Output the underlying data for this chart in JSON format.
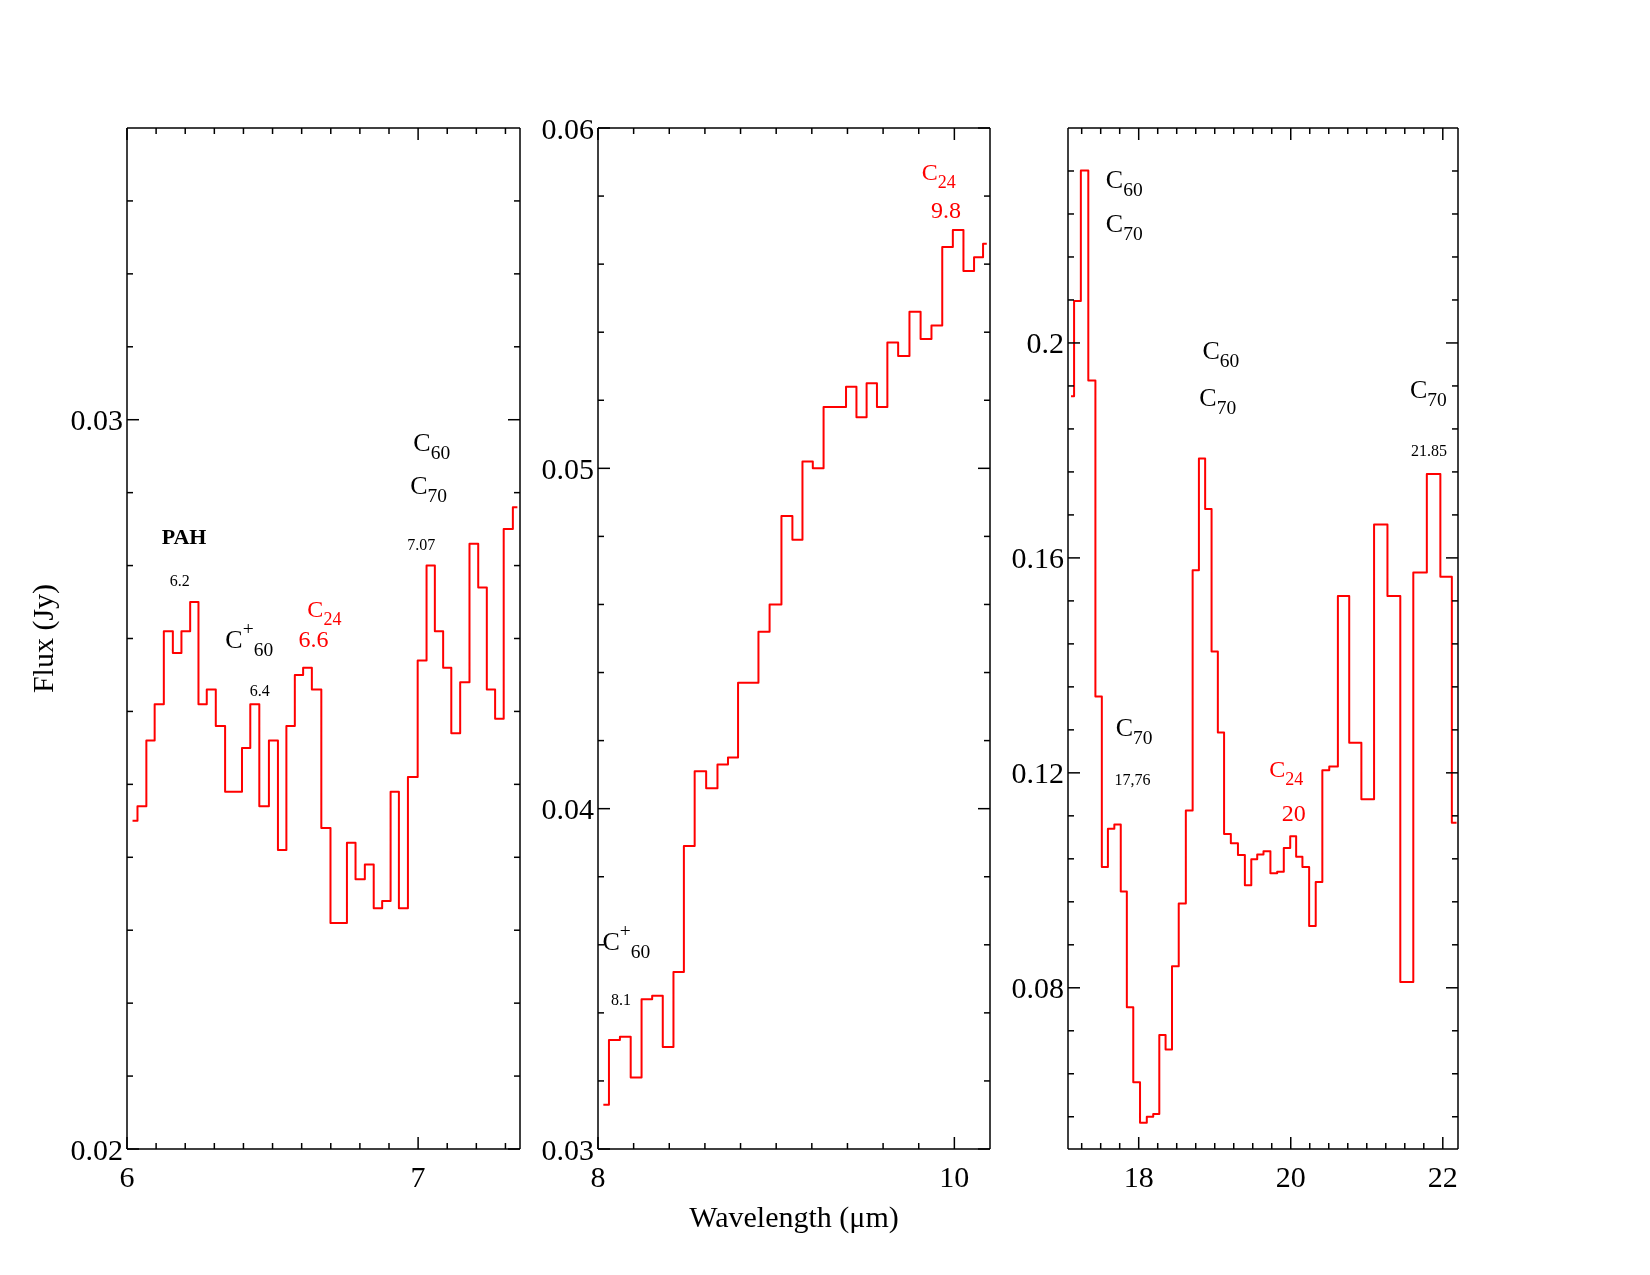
{
  "chart_data": [
    {
      "type": "step",
      "ylabel": "Flux (Jy)",
      "color": "#ff0000",
      "x": [
        6.019,
        6.053,
        6.08,
        6.11,
        6.143,
        6.172,
        6.202,
        6.232,
        6.259,
        6.289,
        6.321,
        6.353,
        6.381,
        6.409,
        6.438,
        6.471,
        6.504,
        6.533,
        6.562,
        6.591,
        6.619,
        6.651,
        6.684,
        6.714,
        6.742,
        6.769,
        6.801,
        6.833,
        6.862,
        6.891,
        6.92,
        6.948,
        6.982,
        7.015,
        7.043,
        7.072,
        7.1,
        7.128,
        7.161,
        7.192,
        7.221,
        7.251,
        7.278,
        7.31,
        7.341
      ],
      "values": [
        0.0245,
        0.0247,
        0.0256,
        0.0261,
        0.0271,
        0.0268,
        0.0271,
        0.0275,
        0.0261,
        0.0263,
        0.0258,
        0.0249,
        0.0249,
        0.0255,
        0.0261,
        0.0247,
        0.0256,
        0.0241,
        0.0258,
        0.0265,
        0.0266,
        0.0263,
        0.0244,
        0.0231,
        0.0231,
        0.0242,
        0.0237,
        0.0239,
        0.0233,
        0.0234,
        0.0249,
        0.0233,
        0.0251,
        0.0267,
        0.028,
        0.0271,
        0.0266,
        0.0257,
        0.0264,
        0.0283,
        0.0277,
        0.0263,
        0.0259,
        0.0285,
        0.0288
      ],
      "xlim": [
        6,
        7.35
      ],
      "ylim": [
        0.02,
        0.034
      ],
      "xticks": [
        6,
        {
          "value": 6.1,
          "label": null
        },
        {
          "value": 6.2,
          "label": null
        },
        {
          "value": 6.3,
          "label": null
        },
        {
          "value": 6.4,
          "label": null
        },
        {
          "value": 6.5,
          "label": null
        },
        {
          "value": 6.6,
          "label": null
        },
        {
          "value": 6.7,
          "label": null
        },
        {
          "value": 6.8,
          "label": null
        },
        {
          "value": 6.9,
          "label": null
        },
        7,
        {
          "value": 7.1,
          "label": null
        },
        {
          "value": 7.2,
          "label": null
        },
        {
          "value": 7.3,
          "label": null
        }
      ],
      "yticks": [
        0.02,
        {
          "value": 0.021,
          "label": null
        },
        {
          "value": 0.022,
          "label": null
        },
        {
          "value": 0.023,
          "label": null
        },
        {
          "value": 0.024,
          "label": null
        },
        {
          "value": 0.025,
          "label": null
        },
        {
          "value": 0.026,
          "label": null
        },
        {
          "value": 0.027,
          "label": null
        },
        {
          "value": 0.028,
          "label": null
        },
        {
          "value": 0.029,
          "label": null
        },
        0.03,
        {
          "value": 0.031,
          "label": null
        },
        {
          "value": 0.032,
          "label": null
        },
        {
          "value": 0.033,
          "label": null
        }
      ],
      "annotations": [
        "PAH",
        "6.2",
        "C$^{+}$$_{60}$",
        "6.4",
        "C$_{24}$",
        "6.6",
        "C$_{60}$",
        "C$_{70}$",
        "7.07"
      ]
    },
    {
      "type": "step",
      "xlabel": "Wavelength (μm)",
      "color": "#ff0000",
      "x": [
        8.03,
        8.093,
        8.153,
        8.214,
        8.275,
        8.333,
        8.394,
        8.453,
        8.511,
        8.574,
        8.64,
        8.701,
        8.758,
        8.814,
        8.871,
        8.93,
        8.996,
        9.063,
        9.119,
        9.176,
        9.235,
        9.297,
        9.362,
        9.422,
        9.479,
        9.536,
        9.595,
        9.653,
        9.716,
        9.78,
        9.841,
        9.902,
        9.962,
        10.021,
        10.081,
        10.14,
        10.182
      ],
      "values": [
        0.0313,
        0.0332,
        0.0333,
        0.0321,
        0.0344,
        0.0345,
        0.033,
        0.0352,
        0.0389,
        0.0411,
        0.0406,
        0.0413,
        0.0415,
        0.0437,
        0.0437,
        0.0452,
        0.046,
        0.0486,
        0.0479,
        0.0502,
        0.05,
        0.0518,
        0.0518,
        0.0524,
        0.0515,
        0.0525,
        0.0518,
        0.0537,
        0.0533,
        0.0546,
        0.0538,
        0.0542,
        0.0565,
        0.057,
        0.0558,
        0.0562,
        0.0566
      ],
      "xlim": [
        8,
        10.2
      ],
      "ylim": [
        0.03,
        0.06
      ],
      "xticks": [
        8,
        {
          "value": 8.2,
          "label": null
        },
        {
          "value": 8.4,
          "label": null
        },
        {
          "value": 8.6,
          "label": null
        },
        {
          "value": 8.8,
          "label": null
        },
        {
          "value": 9,
          "label": null
        },
        {
          "value": 9.2,
          "label": null
        },
        {
          "value": 9.4,
          "label": null
        },
        {
          "value": 9.6,
          "label": null
        },
        {
          "value": 9.8,
          "label": null
        },
        10
      ],
      "yticks": [
        0.03,
        {
          "value": 0.032,
          "label": null
        },
        {
          "value": 0.034,
          "label": null
        },
        {
          "value": 0.036,
          "label": null
        },
        {
          "value": 0.038,
          "label": null
        },
        0.04,
        {
          "value": 0.042,
          "label": null
        },
        {
          "value": 0.044,
          "label": null
        },
        {
          "value": 0.046,
          "label": null
        },
        {
          "value": 0.048,
          "label": null
        },
        0.05,
        {
          "value": 0.052,
          "label": null
        },
        {
          "value": 0.054,
          "label": null
        },
        {
          "value": 0.056,
          "label": null
        },
        {
          "value": 0.058,
          "label": null
        },
        0.06
      ],
      "annotations": [
        "C$^{+}$$_{60}$",
        "8.1",
        "C$_{24}$",
        "9.8"
      ]
    },
    {
      "type": "step",
      "color": "#ff0000",
      "x": [
        17.11,
        17.19,
        17.288,
        17.386,
        17.475,
        17.555,
        17.635,
        17.724,
        17.804,
        17.884,
        17.973,
        18.062,
        18.151,
        18.231,
        18.311,
        18.396,
        18.48,
        18.573,
        18.667,
        18.752,
        18.832,
        18.916,
        19.001,
        19.081,
        19.165,
        19.259,
        19.352,
        19.441,
        19.521,
        19.597,
        19.686,
        19.779,
        19.864,
        19.953,
        20.033,
        20.109,
        20.198,
        20.286,
        20.371,
        20.46,
        20.553,
        20.687,
        20.851,
        21.007,
        21.185,
        21.359,
        21.523,
        21.701,
        21.879,
        22.057,
        22.181
      ],
      "values": [
        0.1901,
        0.2078,
        0.2321,
        0.193,
        0.1342,
        0.1025,
        0.1096,
        0.1104,
        0.0979,
        0.0764,
        0.0624,
        0.0549,
        0.056,
        0.0565,
        0.0712,
        0.0685,
        0.084,
        0.0957,
        0.113,
        0.1577,
        0.1785,
        0.1691,
        0.1426,
        0.1275,
        0.1086,
        0.1069,
        0.1047,
        0.0991,
        0.1039,
        0.1048,
        0.1054,
        0.1013,
        0.1016,
        0.106,
        0.1082,
        0.1044,
        0.1025,
        0.0915,
        0.0997,
        0.1205,
        0.1212,
        0.1529,
        0.1256,
        0.1151,
        0.1662,
        0.1529,
        0.0811,
        0.1573,
        0.1756,
        0.1565,
        0.1107
      ],
      "xlim": [
        17.07,
        22.2
      ],
      "ylim": [
        0.05,
        0.24
      ],
      "xticks": [
        {
          "value": 17.25,
          "label": null
        },
        {
          "value": 17.5,
          "label": null
        },
        {
          "value": 17.75,
          "label": null
        },
        18,
        {
          "value": 18.25,
          "label": null
        },
        {
          "value": 18.5,
          "label": null
        },
        {
          "value": 18.75,
          "label": null
        },
        {
          "value": 19,
          "label": null
        },
        {
          "value": 19.25,
          "label": null
        },
        {
          "value": 19.5,
          "label": null
        },
        {
          "value": 19.75,
          "label": null
        },
        20,
        {
          "value": 20.25,
          "label": null
        },
        {
          "value": 20.5,
          "label": null
        },
        {
          "value": 20.75,
          "label": null
        },
        {
          "value": 21,
          "label": null
        },
        {
          "value": 21.25,
          "label": null
        },
        {
          "value": 21.5,
          "label": null
        },
        {
          "value": 21.75,
          "label": null
        },
        22
      ],
      "yticks": [
        {
          "value": 0.056,
          "label": null
        },
        {
          "value": 0.064,
          "label": null
        },
        {
          "value": 0.072,
          "label": null
        },
        0.08,
        {
          "value": 0.088,
          "label": null
        },
        {
          "value": 0.096,
          "label": null
        },
        {
          "value": 0.104,
          "label": null
        },
        {
          "value": 0.112,
          "label": null
        },
        0.12,
        {
          "value": 0.128,
          "label": null
        },
        {
          "value": 0.136,
          "label": null
        },
        {
          "value": 0.144,
          "label": null
        },
        {
          "value": 0.152,
          "label": null
        },
        0.16,
        {
          "value": 0.168,
          "label": null
        },
        {
          "value": 0.176,
          "label": null
        },
        {
          "value": 0.184,
          "label": null
        },
        {
          "value": 0.192,
          "label": null
        },
        0.2,
        {
          "value": 0.208,
          "label": null
        },
        {
          "value": 0.216,
          "label": null
        },
        {
          "value": 0.224,
          "label": null
        },
        {
          "value": 0.232,
          "label": null
        }
      ],
      "annotations": [
        "C$_{60}$",
        "C$_{70}$",
        "C$_{60}$",
        "C$_{70}$",
        "C$_{70}$",
        "21.85",
        "C$_{70}$",
        "17,76",
        "C$_{24}$",
        "20"
      ]
    }
  ]
}
